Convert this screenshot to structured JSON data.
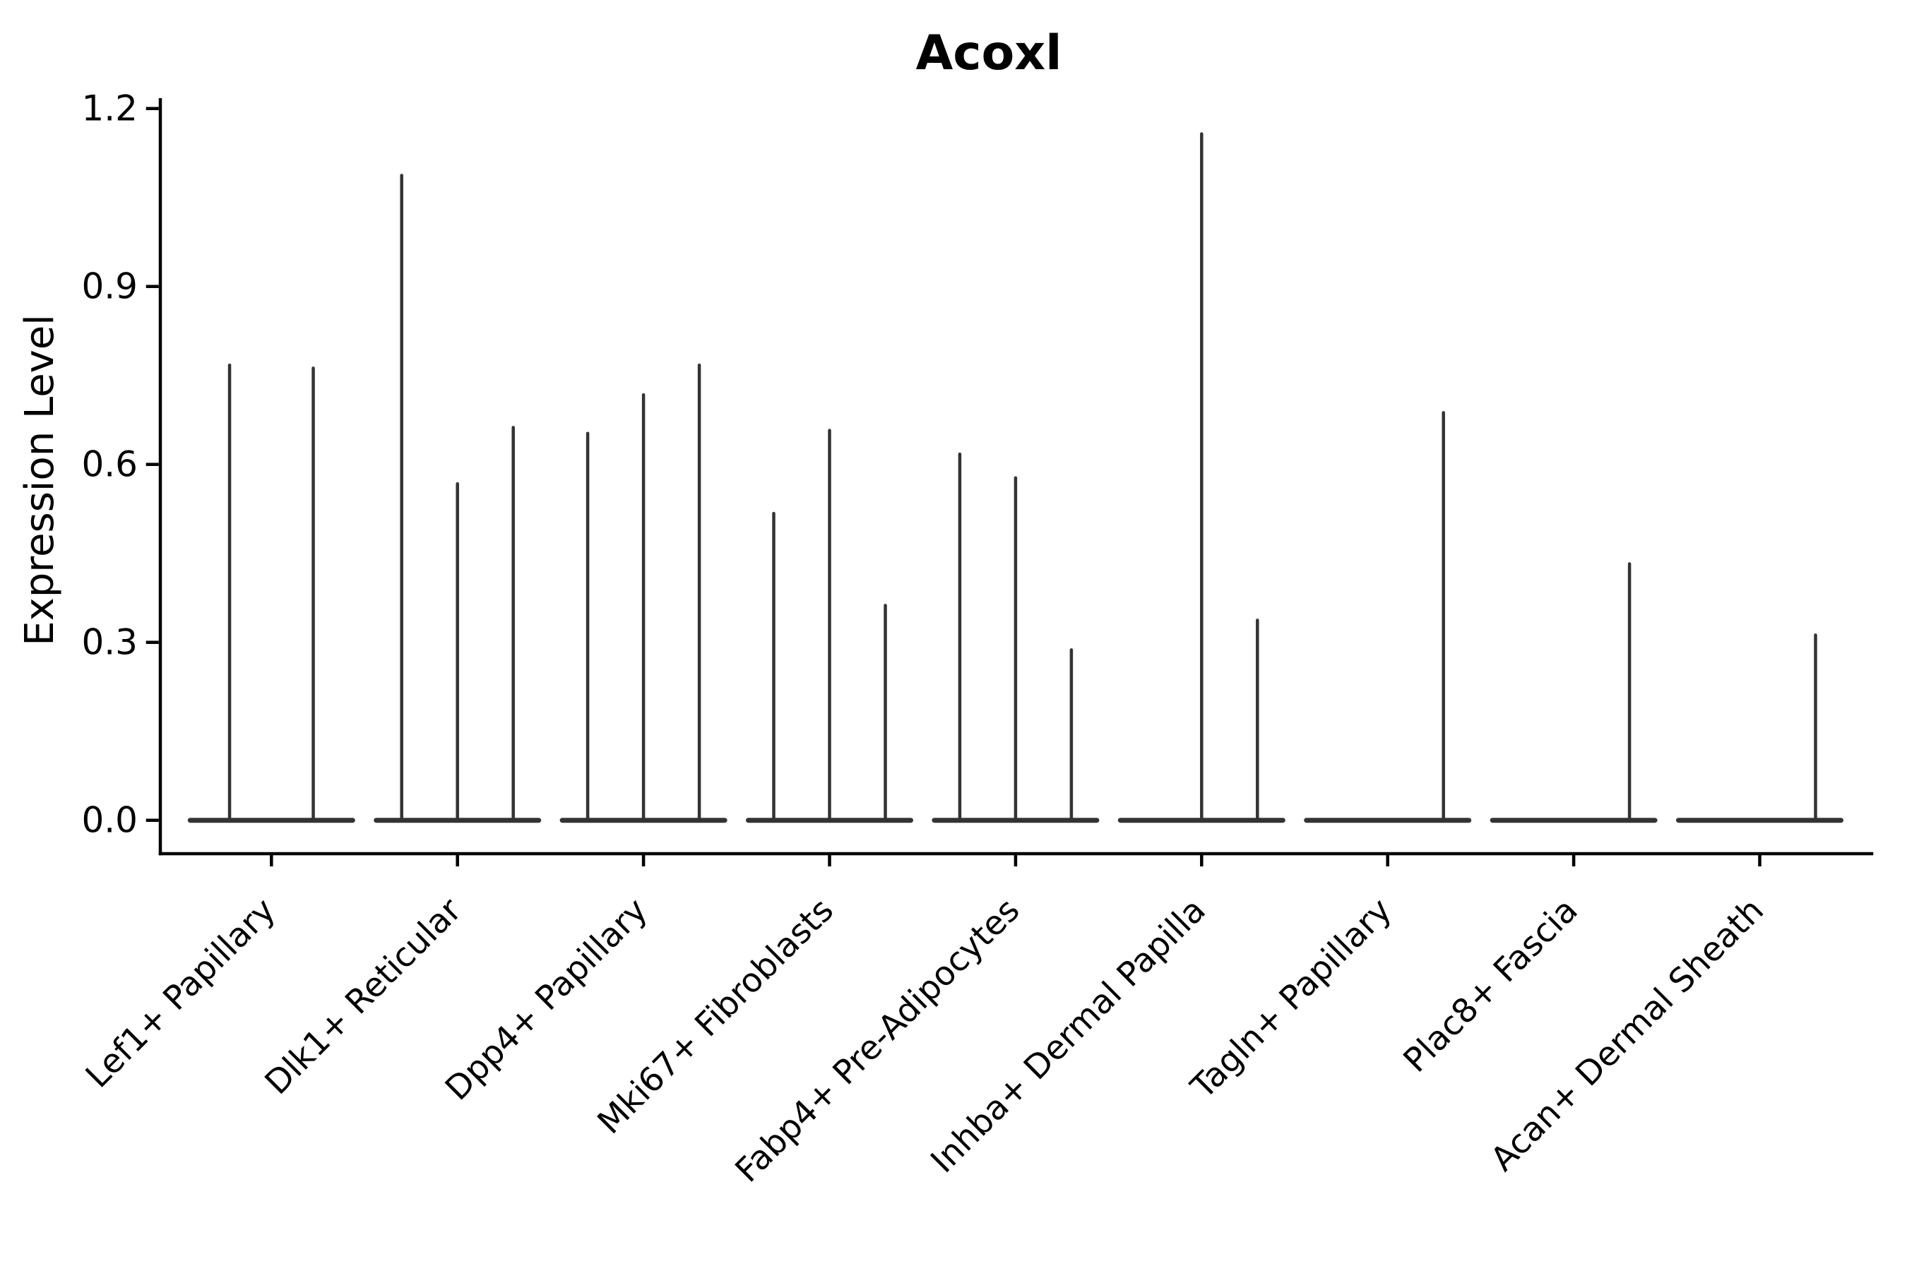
{
  "figure": {
    "title": "Acoxl",
    "y_axis": {
      "label": "Expression Level",
      "tick_labels": [
        "0.0",
        "0.3",
        "0.6",
        "0.9",
        "1.2"
      ]
    },
    "x_axis": {
      "categories": [
        "Lef1+ Papillary",
        "Dlk1+ Reticular",
        "Dpp4+ Papillary",
        "Mki67+ Fibroblasts",
        "Fabp4+ Pre-Adipocytes",
        "Inhba+ Dermal Papilla",
        "Tagln+ Papillary",
        "Plac8+ Fascia",
        "Acan+ Dermal Sheath"
      ]
    }
  },
  "chart_data": {
    "type": "violin",
    "title": "Acoxl",
    "xlabel": "",
    "ylabel": "Expression Level",
    "ylim": [
      0,
      1.2
    ],
    "yticks": [
      0,
      0.3,
      0.6,
      0.9,
      1.2
    ],
    "categories": [
      "Lef1+ Papillary",
      "Dlk1+ Reticular",
      "Dpp4+ Papillary",
      "Mki67+ Fibroblasts",
      "Fabp4+ Pre-Adipocytes",
      "Inhba+ Dermal Papilla",
      "Tagln+ Papillary",
      "Plac8+ Fascia",
      "Acan+ Dermal Sheath"
    ],
    "groups": [
      {
        "category": "Lef1+ Papillary",
        "peaks": [
          0.77,
          0.765
        ]
      },
      {
        "category": "Dlk1+ Reticular",
        "peaks": [
          1.09,
          0.57,
          0.665
        ]
      },
      {
        "category": "Dpp4+ Papillary",
        "peaks": [
          0.655,
          0.72,
          0.77
        ]
      },
      {
        "category": "Mki67+ Fibroblasts",
        "peaks": [
          0.52,
          0.66,
          0.365
        ]
      },
      {
        "category": "Fabp4+ Pre-Adipocytes",
        "peaks": [
          0.62,
          0.58,
          0.29
        ]
      },
      {
        "category": "Inhba+ Dermal Papilla",
        "peaks": [
          null,
          1.16,
          0.34
        ]
      },
      {
        "category": "Tagln+ Papillary",
        "peaks": [
          null,
          null,
          0.69
        ]
      },
      {
        "category": "Plac8+ Fascia",
        "peaks": [
          null,
          null,
          0.435
        ]
      },
      {
        "category": "Acan+ Dermal Sheath",
        "peaks": [
          null,
          null,
          0.315
        ]
      }
    ],
    "legend": null,
    "grid": false,
    "style": {
      "violin_color": "#333333",
      "axis_color": "#000000",
      "background": "#ffffff"
    }
  }
}
